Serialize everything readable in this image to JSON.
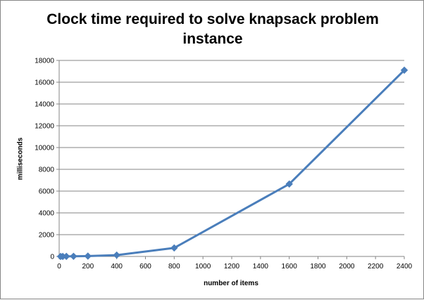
{
  "chart_data": {
    "type": "line",
    "title_lines": [
      "Clock time required to solve knapsack problem",
      "instance"
    ],
    "xlabel": "number of items",
    "ylabel": "milliseconds",
    "xlim": [
      0,
      2400
    ],
    "ylim": [
      0,
      18000
    ],
    "x_ticks": [
      0,
      200,
      400,
      600,
      800,
      1000,
      1200,
      1400,
      1600,
      1800,
      2000,
      2200,
      2400
    ],
    "y_ticks": [
      0,
      2000,
      4000,
      6000,
      8000,
      10000,
      12000,
      14000,
      16000,
      18000
    ],
    "grid": "horizontal",
    "legend": "none",
    "series": [
      {
        "x": [
          10,
          25,
          50,
          100,
          200,
          400,
          800,
          1600,
          2400
        ],
        "y": [
          0,
          0,
          5,
          10,
          30,
          120,
          780,
          6650,
          17100
        ],
        "color": "#4a7ebb",
        "marker": "diamond"
      }
    ]
  }
}
